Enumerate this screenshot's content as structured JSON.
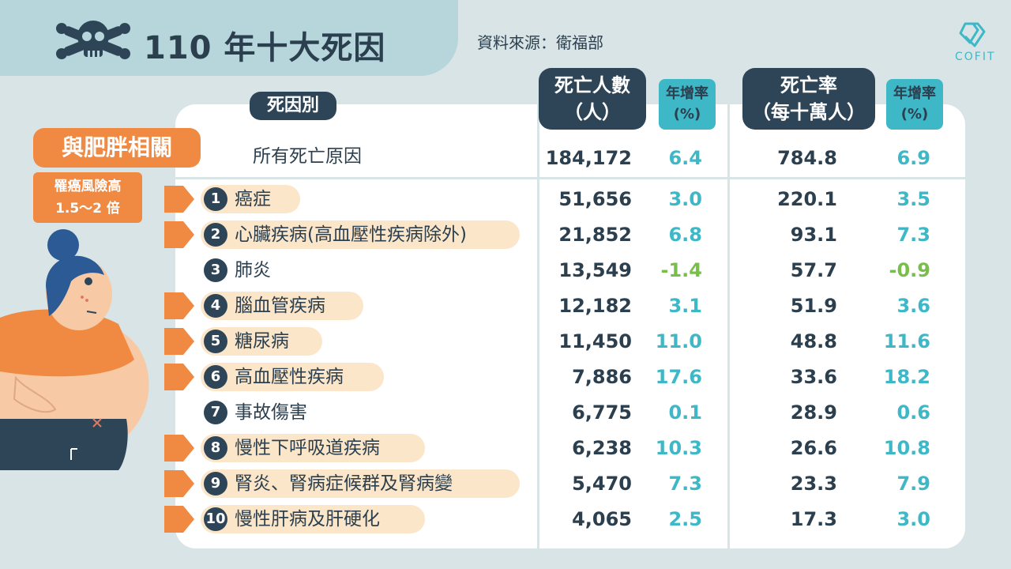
{
  "header": {
    "title": "110 年十大死因",
    "source": "資料來源：衛福部",
    "brand": "COFIT"
  },
  "columns": {
    "cause": "死因別",
    "deaths_line1": "死亡人數",
    "deaths_line2": "（人）",
    "deaths_growth_line1": "年增率",
    "deaths_growth_line2": "(%)",
    "rate_line1": "死亡率",
    "rate_line2": "（每十萬人）",
    "rate_growth_line1": "年增率",
    "rate_growth_line2": "(%)"
  },
  "sidebar": {
    "obesity_tag": "與肥胖相關",
    "risk_line1": "罹癌風險高",
    "risk_line2": "1.5～2 倍"
  },
  "all_causes": {
    "label": "所有死亡原因",
    "deaths": "184,172",
    "deaths_growth": "6.4",
    "rate": "784.8",
    "rate_growth": "6.9"
  },
  "colors": {
    "dark": "#2e4558",
    "cyan": "#3eb7c6",
    "orange": "#f08a43",
    "highlight": "#fbe6c9",
    "negative": "#78be4a",
    "background": "#d9e4e6"
  },
  "chart_data": {
    "type": "table",
    "title": "110 年十大死因",
    "columns": [
      "死因別",
      "死亡人數（人）",
      "年增率(%)",
      "死亡率（每十萬人）",
      "年增率(%)"
    ],
    "rows": [
      {
        "rank": "1",
        "cause": "癌症",
        "deaths": "51,656",
        "deaths_growth": "3.0",
        "rate": "220.1",
        "rate_growth": "3.5",
        "obesity_related": true
      },
      {
        "rank": "2",
        "cause": "心臟疾病(高血壓性疾病除外)",
        "deaths": "21,852",
        "deaths_growth": "6.8",
        "rate": "93.1",
        "rate_growth": "7.3",
        "obesity_related": true
      },
      {
        "rank": "3",
        "cause": "肺炎",
        "deaths": "13,549",
        "deaths_growth": "-1.4",
        "rate": "57.7",
        "rate_growth": "-0.9",
        "obesity_related": false
      },
      {
        "rank": "4",
        "cause": "腦血管疾病",
        "deaths": "12,182",
        "deaths_growth": "3.1",
        "rate": "51.9",
        "rate_growth": "3.6",
        "obesity_related": true
      },
      {
        "rank": "5",
        "cause": "糖尿病",
        "deaths": "11,450",
        "deaths_growth": "11.0",
        "rate": "48.8",
        "rate_growth": "11.6",
        "obesity_related": true
      },
      {
        "rank": "6",
        "cause": "高血壓性疾病",
        "deaths": "7,886",
        "deaths_growth": "17.6",
        "rate": "33.6",
        "rate_growth": "18.2",
        "obesity_related": true
      },
      {
        "rank": "7",
        "cause": "事故傷害",
        "deaths": "6,775",
        "deaths_growth": "0.1",
        "rate": "28.9",
        "rate_growth": "0.6",
        "obesity_related": false
      },
      {
        "rank": "8",
        "cause": "慢性下呼吸道疾病",
        "deaths": "6,238",
        "deaths_growth": "10.3",
        "rate": "26.6",
        "rate_growth": "10.8",
        "obesity_related": true
      },
      {
        "rank": "9",
        "cause": "腎炎、腎病症候群及腎病變",
        "deaths": "5,470",
        "deaths_growth": "7.3",
        "rate": "23.3",
        "rate_growth": "7.9",
        "obesity_related": true
      },
      {
        "rank": "10",
        "cause": "慢性肝病及肝硬化",
        "deaths": "4,065",
        "deaths_growth": "2.5",
        "rate": "17.3",
        "rate_growth": "3.0",
        "obesity_related": true
      }
    ]
  }
}
